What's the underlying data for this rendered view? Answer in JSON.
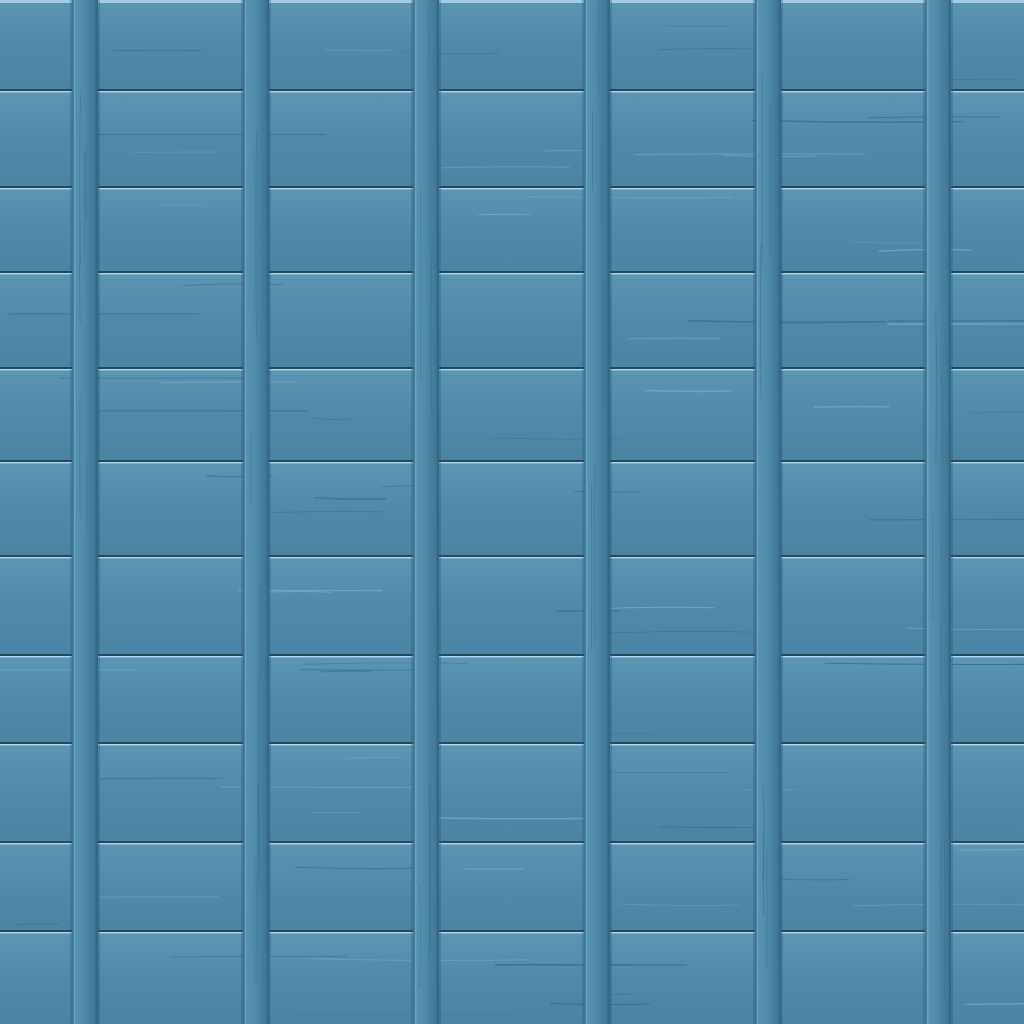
{
  "texture": {
    "name": "blue-painted-wood-plank-wall",
    "plank_color": "#4f8ba8",
    "plank_highlight": "#6aa3bf",
    "gap_shadow": "#1d3e50",
    "edge_highlight": "#b9dcef",
    "batten_color": "#4a86a3",
    "batten_count": 6,
    "plank_rows": 11
  }
}
